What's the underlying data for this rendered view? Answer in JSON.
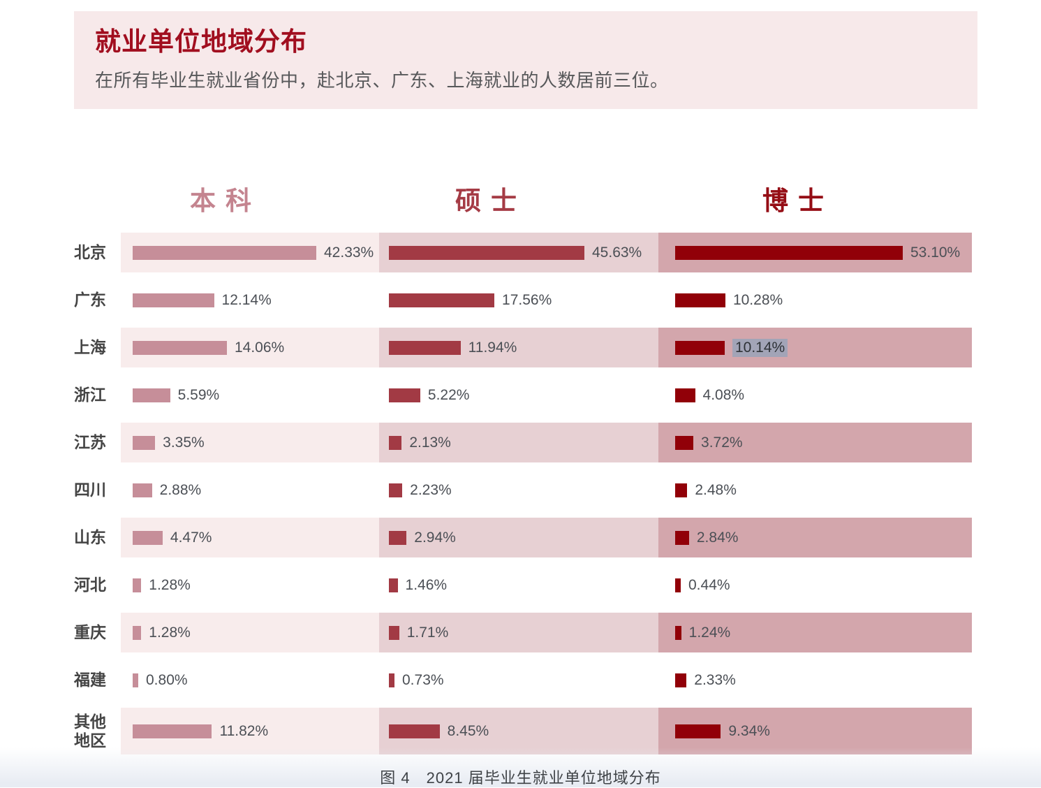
{
  "page": {
    "header": {
      "title": "就业单位地域分布",
      "subtitle": "在所有毕业生就业省份中，赴北京、广东、上海就业的人数居前三位。"
    },
    "caption": "图 4　2021 届毕业生就业单位地域分布",
    "colors": {
      "header_box_bg": "#f7e9ea",
      "title_text": "#a10e1f",
      "row_shading": [
        "#f8ecec",
        "#e7d0d3",
        "#d3a6ac"
      ],
      "column_header_text": [
        "#c4848f",
        "#a53b45",
        "#950d15"
      ],
      "selection_highlight": "#a2a4b7"
    }
  },
  "chart_data": {
    "type": "bar",
    "orientation": "horizontal",
    "title": "就业单位地域分布",
    "categories": [
      "北京",
      "广东",
      "上海",
      "浙江",
      "江苏",
      "四川",
      "山东",
      "河北",
      "重庆",
      "福建",
      "其他地区"
    ],
    "series": [
      {
        "name": "本科",
        "color": "#c68e99",
        "values": [
          42.33,
          12.14,
          14.06,
          5.59,
          3.35,
          2.88,
          4.47,
          1.28,
          1.28,
          0.8,
          11.82
        ]
      },
      {
        "name": "硕士",
        "color": "#a23a44",
        "values": [
          45.63,
          17.56,
          11.94,
          5.22,
          2.13,
          2.23,
          2.94,
          1.46,
          1.71,
          0.73,
          8.45
        ]
      },
      {
        "name": "博士",
        "color": "#910008",
        "values": [
          53.1,
          10.28,
          10.14,
          4.08,
          3.72,
          2.48,
          2.84,
          0.44,
          1.24,
          2.33,
          9.34
        ]
      }
    ],
    "value_suffix": "%",
    "value_labels": true,
    "grid": false,
    "legend_position": "column-headers-top",
    "zebra_striping": "odd-rows-shaded",
    "highlight": {
      "series": "博士",
      "category": "上海",
      "value": "10.14%",
      "style": "text-selection"
    }
  }
}
